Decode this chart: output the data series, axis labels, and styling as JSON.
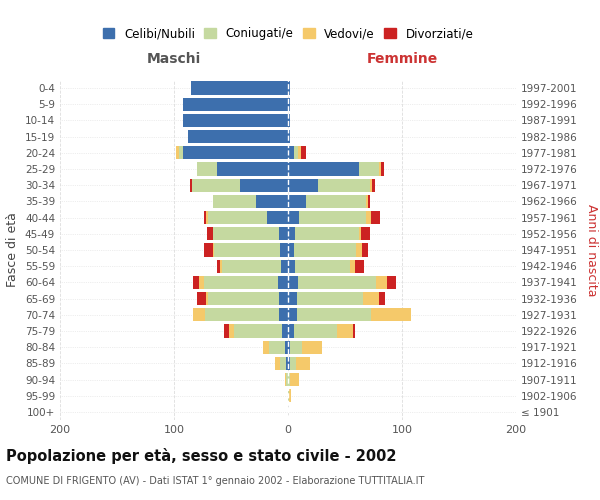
{
  "age_groups": [
    "100+",
    "95-99",
    "90-94",
    "85-89",
    "80-84",
    "75-79",
    "70-74",
    "65-69",
    "60-64",
    "55-59",
    "50-54",
    "45-49",
    "40-44",
    "35-39",
    "30-34",
    "25-29",
    "20-24",
    "15-19",
    "10-14",
    "5-9",
    "0-4"
  ],
  "birth_years": [
    "≤ 1901",
    "1902-1906",
    "1907-1911",
    "1912-1916",
    "1917-1921",
    "1922-1926",
    "1927-1931",
    "1932-1936",
    "1937-1941",
    "1942-1946",
    "1947-1951",
    "1952-1956",
    "1957-1961",
    "1962-1966",
    "1967-1971",
    "1972-1976",
    "1977-1981",
    "1982-1986",
    "1987-1991",
    "1992-1996",
    "1997-2001"
  ],
  "maschi_celibi": [
    0,
    0,
    0,
    2,
    3,
    5,
    8,
    8,
    9,
    6,
    7,
    8,
    18,
    28,
    42,
    62,
    92,
    88,
    92,
    92,
    85
  ],
  "maschi_coniugati": [
    0,
    0,
    2,
    5,
    14,
    42,
    65,
    62,
    65,
    52,
    58,
    58,
    52,
    38,
    42,
    18,
    4,
    0,
    0,
    0,
    0
  ],
  "maschi_vedovi": [
    0,
    0,
    1,
    4,
    5,
    5,
    10,
    2,
    4,
    2,
    1,
    0,
    2,
    0,
    0,
    0,
    2,
    0,
    0,
    0,
    0
  ],
  "maschi_divorziati": [
    0,
    0,
    0,
    0,
    0,
    4,
    0,
    8,
    5,
    2,
    8,
    5,
    2,
    0,
    2,
    0,
    0,
    0,
    0,
    0,
    0
  ],
  "femmine_nubili": [
    0,
    0,
    0,
    2,
    2,
    5,
    8,
    8,
    9,
    6,
    5,
    6,
    10,
    16,
    26,
    62,
    5,
    2,
    2,
    2,
    2
  ],
  "femmine_coniugate": [
    0,
    1,
    2,
    5,
    10,
    38,
    65,
    58,
    68,
    48,
    55,
    56,
    58,
    52,
    46,
    18,
    4,
    0,
    0,
    0,
    0
  ],
  "femmine_vedove": [
    0,
    2,
    8,
    12,
    18,
    14,
    35,
    14,
    10,
    5,
    5,
    2,
    5,
    2,
    2,
    2,
    2,
    0,
    0,
    0,
    0
  ],
  "femmine_divorziate": [
    0,
    0,
    0,
    0,
    0,
    2,
    0,
    5,
    8,
    8,
    5,
    8,
    8,
    2,
    2,
    2,
    5,
    0,
    0,
    0,
    0
  ],
  "colors": {
    "celibi": "#3d6fad",
    "coniugati": "#c5d9a0",
    "vedovi": "#f5c96a",
    "divorziati": "#cc2222"
  },
  "title": "Popolazione per età, sesso e stato civile - 2002",
  "subtitle": "COMUNE DI FRIGENTO (AV) - Dati ISTAT 1° gennaio 2002 - Elaborazione TUTTITALIA.IT",
  "xlabel_left": "Maschi",
  "xlabel_right": "Femmine",
  "ylabel_left": "Fasce di età",
  "ylabel_right": "Anni di nascita",
  "xlim": 200,
  "bg_color": "#ffffff",
  "grid_color": "#cccccc"
}
